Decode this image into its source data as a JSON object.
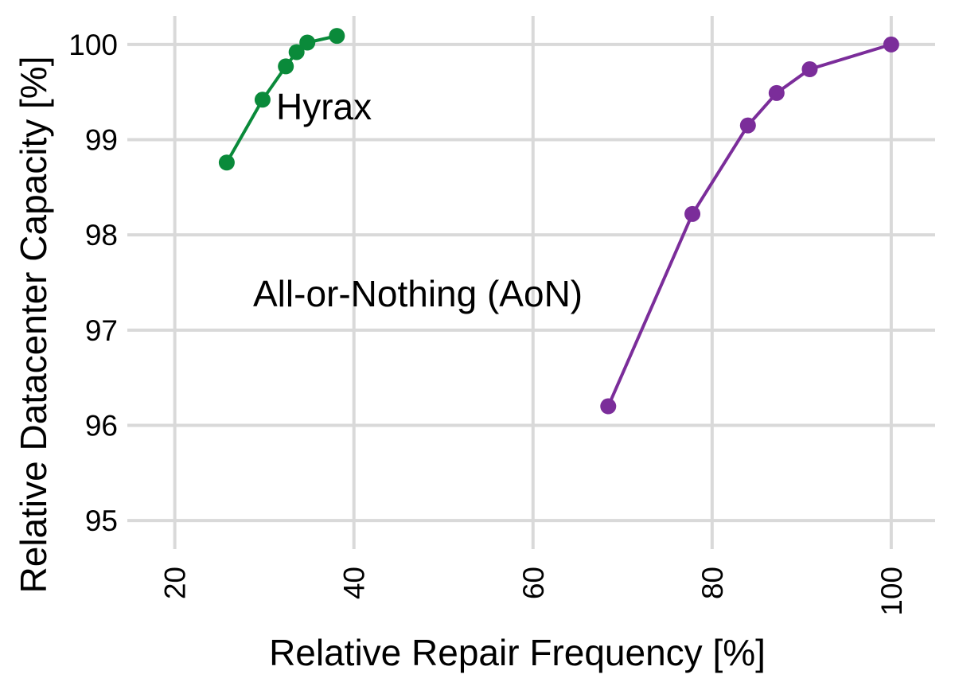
{
  "chart_data": {
    "type": "line",
    "x_label": "Relative Repair Frequency [%]",
    "y_label": "Relative Datacenter Capacity [%]",
    "xlim": [
      14.7,
      104.9
    ],
    "xticks": [
      20,
      40,
      60,
      80,
      100
    ],
    "ylim": [
      94.7,
      100.3
    ],
    "yticks": [
      95,
      96,
      97,
      98,
      99,
      100
    ],
    "grid": true,
    "series": [
      {
        "name": "Hyrax",
        "color": "#0a8a3a",
        "x": [
          25.8,
          29.8,
          32.4,
          33.6,
          34.8,
          38.1
        ],
        "values": [
          98.76,
          99.42,
          99.77,
          99.92,
          100.02,
          100.09
        ]
      },
      {
        "name": "All-or-Nothing (AoN)",
        "color": "#7b2d9a",
        "x": [
          68.4,
          77.8,
          84.0,
          87.2,
          90.9,
          100
        ],
        "values": [
          96.2,
          98.22,
          99.15,
          99.49,
          99.74,
          100.0
        ]
      }
    ]
  }
}
